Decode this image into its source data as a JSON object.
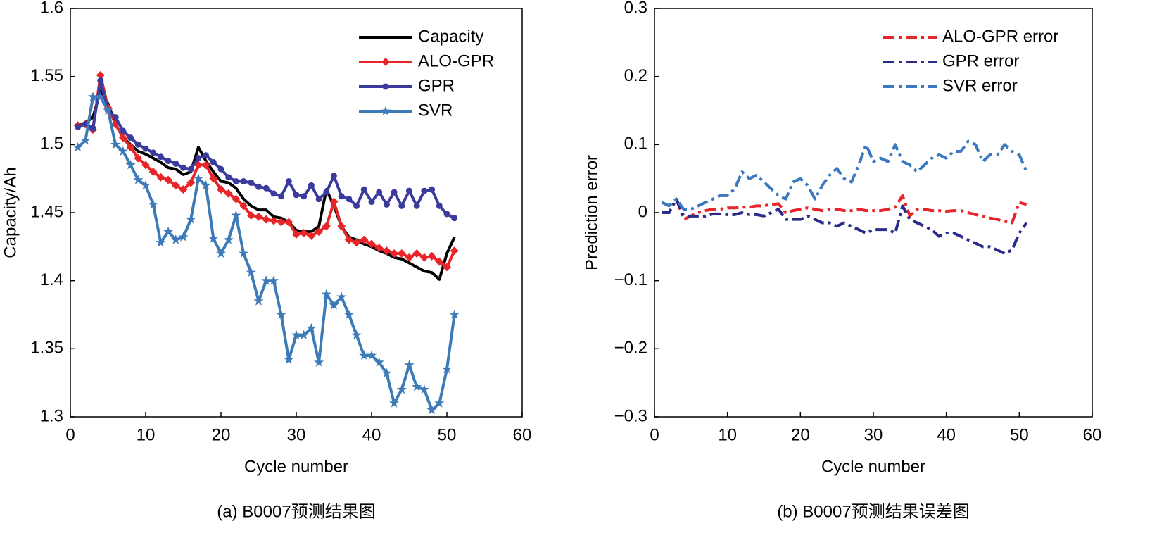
{
  "chart_data": [
    {
      "type": "line",
      "x_label": "Cycle number",
      "y_label": "Capacity/Ah",
      "caption": "(a) B0007预测结果图",
      "x": [
        1,
        2,
        3,
        4,
        5,
        6,
        7,
        8,
        9,
        10,
        11,
        12,
        13,
        14,
        15,
        16,
        17,
        18,
        19,
        20,
        21,
        22,
        23,
        24,
        25,
        26,
        27,
        28,
        29,
        30,
        31,
        32,
        33,
        34,
        35,
        36,
        37,
        38,
        39,
        40,
        41,
        42,
        43,
        44,
        45,
        46,
        47,
        48,
        49,
        50,
        51
      ],
      "xlim": [
        0,
        60
      ],
      "xticks": [
        0,
        10,
        20,
        30,
        40,
        50,
        60
      ],
      "ylim": [
        1.3,
        1.6
      ],
      "yticks": [
        1.3,
        1.35,
        1.4,
        1.45,
        1.5,
        1.55,
        1.6
      ],
      "legend": "upper right",
      "series": [
        {
          "name": "Capacity",
          "color": "#000000",
          "marker": "none",
          "dash": "solid",
          "values": [
            1.514,
            1.516,
            1.52,
            1.54,
            1.53,
            1.515,
            1.505,
            1.5,
            1.495,
            1.493,
            1.49,
            1.487,
            1.483,
            1.482,
            1.478,
            1.48,
            1.498,
            1.488,
            1.48,
            1.473,
            1.472,
            1.468,
            1.46,
            1.455,
            1.452,
            1.452,
            1.447,
            1.446,
            1.443,
            1.437,
            1.436,
            1.436,
            1.44,
            1.467,
            1.455,
            1.44,
            1.432,
            1.43,
            1.427,
            1.425,
            1.422,
            1.42,
            1.417,
            1.416,
            1.413,
            1.41,
            1.407,
            1.406,
            1.401,
            1.42,
            1.432
          ]
        },
        {
          "name": "ALO-GPR",
          "color": "#e8262a",
          "marker": "diamond",
          "dash": "solid",
          "values": [
            1.514,
            1.515,
            1.511,
            1.551,
            1.527,
            1.515,
            1.505,
            1.498,
            1.49,
            1.485,
            1.48,
            1.476,
            1.474,
            1.47,
            1.467,
            1.472,
            1.485,
            1.485,
            1.475,
            1.467,
            1.464,
            1.46,
            1.455,
            1.448,
            1.447,
            1.445,
            1.444,
            1.443,
            1.443,
            1.434,
            1.435,
            1.433,
            1.436,
            1.44,
            1.458,
            1.44,
            1.43,
            1.428,
            1.43,
            1.427,
            1.424,
            1.422,
            1.42,
            1.42,
            1.417,
            1.42,
            1.417,
            1.418,
            1.414,
            1.41,
            1.422
          ]
        },
        {
          "name": "GPR",
          "color": "#3b3b9e",
          "marker": "circle",
          "dash": "solid",
          "values": [
            1.513,
            1.515,
            1.512,
            1.547,
            1.525,
            1.52,
            1.51,
            1.505,
            1.5,
            1.497,
            1.494,
            1.491,
            1.488,
            1.486,
            1.483,
            1.482,
            1.49,
            1.492,
            1.487,
            1.482,
            1.476,
            1.473,
            1.473,
            1.472,
            1.469,
            1.468,
            1.464,
            1.462,
            1.473,
            1.463,
            1.462,
            1.47,
            1.46,
            1.465,
            1.477,
            1.462,
            1.46,
            1.455,
            1.467,
            1.458,
            1.465,
            1.456,
            1.465,
            1.455,
            1.466,
            1.455,
            1.466,
            1.467,
            1.455,
            1.449,
            1.446
          ]
        },
        {
          "name": "SVR",
          "color": "#3d7ab8",
          "marker": "star",
          "dash": "solid",
          "values": [
            1.498,
            1.503,
            1.535,
            1.535,
            1.525,
            1.5,
            1.495,
            1.485,
            1.474,
            1.47,
            1.456,
            1.428,
            1.436,
            1.43,
            1.432,
            1.445,
            1.475,
            1.47,
            1.431,
            1.42,
            1.43,
            1.448,
            1.42,
            1.406,
            1.385,
            1.4,
            1.4,
            1.375,
            1.342,
            1.36,
            1.36,
            1.365,
            1.34,
            1.39,
            1.382,
            1.388,
            1.375,
            1.36,
            1.345,
            1.345,
            1.34,
            1.332,
            1.31,
            1.32,
            1.338,
            1.322,
            1.32,
            1.305,
            1.31,
            1.335,
            1.375
          ]
        }
      ]
    },
    {
      "type": "line",
      "x_label": "Cycle number",
      "y_label": "Prediction error",
      "caption": "(b) B0007预测结果误差图",
      "x": [
        1,
        2,
        3,
        4,
        5,
        6,
        7,
        8,
        9,
        10,
        11,
        12,
        13,
        14,
        15,
        16,
        17,
        18,
        19,
        20,
        21,
        22,
        23,
        24,
        25,
        26,
        27,
        28,
        29,
        30,
        31,
        32,
        33,
        34,
        35,
        36,
        37,
        38,
        39,
        40,
        41,
        42,
        43,
        44,
        45,
        46,
        47,
        48,
        49,
        50,
        51
      ],
      "xlim": [
        0,
        60
      ],
      "xticks": [
        0,
        10,
        20,
        30,
        40,
        50,
        60
      ],
      "ylim": [
        -0.3,
        0.3
      ],
      "yticks": [
        {
          "value": -0.3,
          "label": "−0.3"
        },
        {
          "value": -0.2,
          "label": "−0.2"
        },
        {
          "value": -0.1,
          "label": "−0.1"
        },
        0,
        0.1,
        0.2,
        0.3
      ],
      "legend": "upper right",
      "series": [
        {
          "name": "ALO-GPR error",
          "color": "#e8262a",
          "marker": "none",
          "dash": "dashdot",
          "values": [
            0,
            0,
            0.02,
            -0.01,
            -0.005,
            0,
            0.003,
            0.005,
            0.005,
            0.007,
            0.007,
            0.008,
            0.008,
            0.01,
            0.01,
            0.012,
            0.013,
            0,
            0.003,
            0.005,
            0.007,
            0.005,
            0.003,
            0.005,
            0.005,
            0.003,
            0.003,
            0.005,
            0.003,
            0.003,
            0.003,
            0.005,
            0.008,
            0.025,
            -0.005,
            0.005,
            0.005,
            0.003,
            0.003,
            0.002,
            0.003,
            0.003,
            0,
            -0.003,
            -0.005,
            -0.008,
            -0.01,
            -0.013,
            -0.015,
            0.015,
            0.012
          ]
        },
        {
          "name": "GPR error",
          "color": "#2b2b8c",
          "marker": "none",
          "dash": "dashdot",
          "values": [
            0,
            0,
            0.02,
            -0.005,
            -0.005,
            -0.005,
            -0.005,
            -0.002,
            -0.002,
            -0.003,
            -0.003,
            0,
            -0.003,
            -0.003,
            -0.005,
            0,
            0.005,
            -0.01,
            -0.01,
            -0.01,
            -0.005,
            -0.01,
            -0.015,
            -0.015,
            -0.02,
            -0.015,
            -0.02,
            -0.025,
            -0.03,
            -0.025,
            -0.025,
            -0.025,
            -0.03,
            0.01,
            -0.01,
            -0.015,
            -0.02,
            -0.025,
            -0.035,
            -0.03,
            -0.03,
            -0.035,
            -0.04,
            -0.045,
            -0.05,
            -0.05,
            -0.055,
            -0.06,
            -0.055,
            -0.03,
            -0.015
          ]
        },
        {
          "name": "SVR error",
          "color": "#3a78c0",
          "marker": "none",
          "dash": "dashdot",
          "values": [
            0.015,
            0.01,
            0.02,
            0.005,
            0.005,
            0.01,
            0.015,
            0.02,
            0.025,
            0.025,
            0.035,
            0.06,
            0.05,
            0.055,
            0.045,
            0.035,
            0.025,
            0.02,
            0.045,
            0.05,
            0.04,
            0.02,
            0.04,
            0.055,
            0.065,
            0.05,
            0.045,
            0.07,
            0.1,
            0.075,
            0.08,
            0.075,
            0.1,
            0.075,
            0.07,
            0.06,
            0.07,
            0.08,
            0.085,
            0.08,
            0.09,
            0.09,
            0.105,
            0.1,
            0.075,
            0.085,
            0.085,
            0.1,
            0.09,
            0.085,
            0.06
          ]
        }
      ]
    }
  ]
}
